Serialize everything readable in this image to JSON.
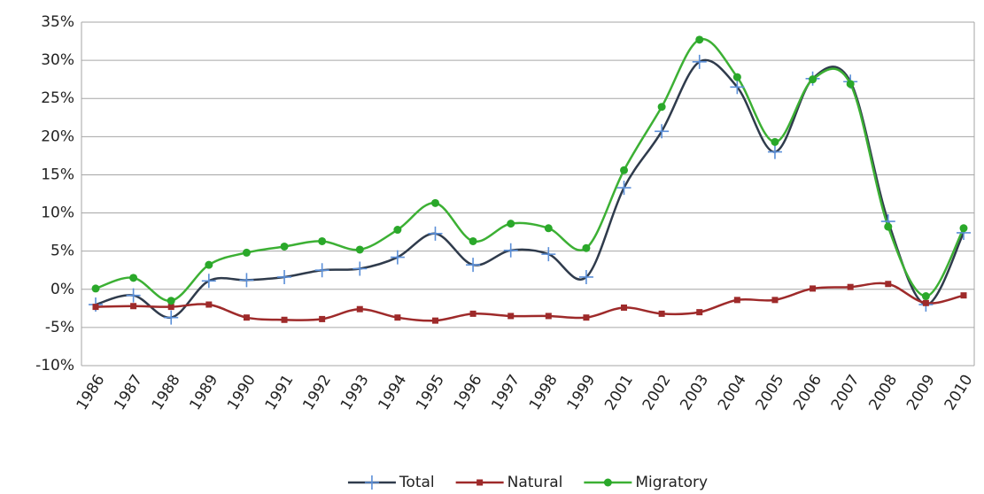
{
  "chart_data": {
    "type": "line",
    "smooth": true,
    "grid": true,
    "legend": "bottom",
    "categories": [
      "1986",
      "1987",
      "1988",
      "1989",
      "1990",
      "1991",
      "1992",
      "1993",
      "1994",
      "1995",
      "1996",
      "1997",
      "1998",
      "1999",
      "2001",
      "2002",
      "2003",
      "2004",
      "2005",
      "2006",
      "2007",
      "2008",
      "2009",
      "2010"
    ],
    "ylim": [
      -10,
      35
    ],
    "yticks": [
      {
        "value": -10,
        "label": "-10%"
      },
      {
        "value": -5,
        "label": "-5%"
      },
      {
        "value": 0,
        "label": "0%"
      },
      {
        "value": 5,
        "label": "5%"
      },
      {
        "value": 10,
        "label": "10%"
      },
      {
        "value": 15,
        "label": "15%"
      },
      {
        "value": 20,
        "label": "20%"
      },
      {
        "value": 25,
        "label": "25%"
      },
      {
        "value": 30,
        "label": "30%"
      },
      {
        "value": 35,
        "label": "35%"
      }
    ],
    "series": [
      {
        "name": "Total",
        "color": "#2f3b4c",
        "marker": "plus",
        "marker_color": "#5b8fd8",
        "values": [
          -2,
          -0.8,
          -3.7,
          1.1,
          1.2,
          1.6,
          2.5,
          2.7,
          4.2,
          7.3,
          3.2,
          5.1,
          4.6,
          1.6,
          13.3,
          20.7,
          29.8,
          26.5,
          18,
          27.6,
          27.2,
          8.9,
          -2,
          7.4
        ]
      },
      {
        "name": "Natural",
        "color": "#9e2a2a",
        "marker": "square",
        "marker_color": "#9e2a2a",
        "values": [
          -2.3,
          -2.2,
          -2.3,
          -2,
          -3.7,
          -4,
          -3.9,
          -2.6,
          -3.7,
          -4.1,
          -3.2,
          -3.5,
          -3.5,
          -3.7,
          -2.4,
          -3.2,
          -3,
          -1.4,
          -1.4,
          0.1,
          0.3,
          0.7,
          -1.8,
          -0.8
        ]
      },
      {
        "name": "Migratory",
        "color": "#3cb034",
        "marker": "circle",
        "marker_color": "#2aa82a",
        "values": [
          0.1,
          1.5,
          -1.5,
          3.2,
          4.8,
          5.6,
          6.3,
          5.2,
          7.8,
          11.3,
          6.3,
          8.6,
          8,
          5.4,
          15.6,
          23.9,
          32.7,
          27.8,
          19.3,
          27.5,
          26.9,
          8.2,
          -0.9,
          8
        ]
      }
    ]
  }
}
